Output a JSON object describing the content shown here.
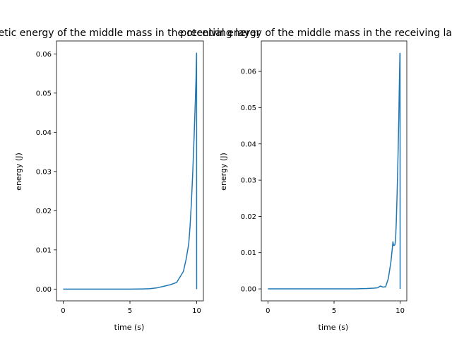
{
  "chart_data": [
    {
      "type": "line",
      "title": "Kinetic energy of the middle mass in the receiving layer",
      "xlabel": "time (s)",
      "ylabel": "energy (J)",
      "xlim": [
        -0.5,
        10.5
      ],
      "ylim": [
        -0.003,
        0.0633
      ],
      "xticks": [
        0,
        5,
        10
      ],
      "yticks": [
        0.0,
        0.01,
        0.02,
        0.03,
        0.04,
        0.05,
        0.06
      ],
      "xtick_labels": [
        "0",
        "5",
        "10"
      ],
      "ytick_labels": [
        "0.00",
        "0.01",
        "0.02",
        "0.03",
        "0.04",
        "0.05",
        "0.06"
      ],
      "grid": false,
      "line_color": "#1f77b4",
      "series": [
        {
          "x": [
            0,
            1,
            2,
            3,
            4,
            5,
            5.5,
            6,
            6.5,
            7,
            7.5,
            8,
            8.5,
            9,
            9.2,
            9.4,
            9.5,
            9.6,
            9.7,
            9.8,
            9.9,
            9.95,
            9.97,
            9.99,
            9.995
          ],
          "y": [
            0,
            0,
            0,
            0,
            0,
            0,
            2e-05,
            5e-05,
            0.0001,
            0.0003,
            0.0007,
            0.0011,
            0.0017,
            0.0045,
            0.0075,
            0.0115,
            0.016,
            0.022,
            0.0295,
            0.0385,
            0.0485,
            0.054,
            0.0575,
            0.0602,
            0.0
          ]
        }
      ]
    },
    {
      "type": "line",
      "title": "potential energy of the middle mass in the receiving layer",
      "xlabel": "time (s)",
      "ylabel": "energy (J)",
      "xlim": [
        -0.5,
        10.5
      ],
      "ylim": [
        -0.0033,
        0.0684
      ],
      "xticks": [
        0,
        5,
        10
      ],
      "yticks": [
        0.0,
        0.01,
        0.02,
        0.03,
        0.04,
        0.05,
        0.06
      ],
      "xtick_labels": [
        "0",
        "5",
        "10"
      ],
      "ytick_labels": [
        "0.00",
        "0.01",
        "0.02",
        "0.03",
        "0.04",
        "0.05",
        "0.06"
      ],
      "grid": false,
      "line_color": "#1f77b4",
      "series": [
        {
          "x": [
            0,
            1,
            2,
            3,
            4,
            5,
            6,
            6.5,
            7,
            7.5,
            8,
            8.3,
            8.5,
            8.7,
            8.9,
            9.1,
            9.3,
            9.4,
            9.45,
            9.5,
            9.55,
            9.6,
            9.65,
            9.7,
            9.75,
            9.8,
            9.85,
            9.9,
            9.93,
            9.96,
            9.98,
            9.99,
            9.995
          ],
          "y": [
            0,
            0,
            0,
            0,
            0,
            0,
            0,
            2e-05,
            5e-05,
            0.0001,
            0.0002,
            0.0003,
            0.0008,
            0.0005,
            0.0006,
            0.0028,
            0.0075,
            0.011,
            0.013,
            0.012,
            0.012,
            0.0122,
            0.0135,
            0.018,
            0.024,
            0.031,
            0.039,
            0.048,
            0.055,
            0.061,
            0.065,
            0.065,
            0.0
          ]
        }
      ]
    }
  ]
}
